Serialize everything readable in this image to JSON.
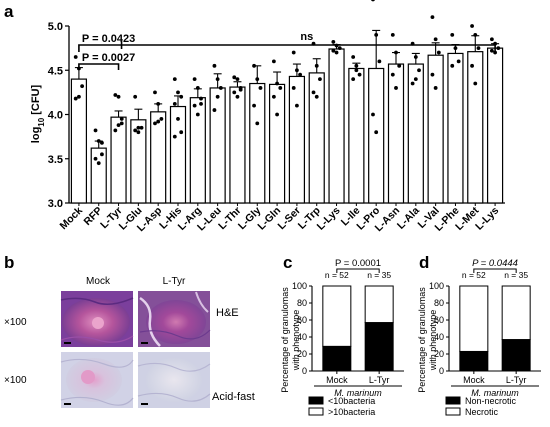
{
  "panels": {
    "a": "a",
    "b": "b",
    "c": "c",
    "d": "d"
  },
  "chart_data": [
    {
      "panel": "a",
      "type": "bar",
      "ylabel": "log10 [CFU]",
      "ylabel_base": "log",
      "ylabel_sub": "10",
      "ylabel_rest": " [CFU]",
      "ylim": [
        3.0,
        5.0
      ],
      "yticks": [
        "3.0",
        "3.5",
        "4.0",
        "4.5",
        "5.0"
      ],
      "categories": [
        "Mock",
        "RFP",
        "L-Tyr",
        "L-Glu",
        "L-Asp",
        "L-His",
        "L-Arg",
        "L-Leu",
        "L-Thr",
        "L-Gly",
        "L-Gln",
        "L-Ser",
        "L-Trp",
        "L-Lys",
        "L-Ile",
        "L-Pro",
        "L-Asn",
        "L-Ala",
        "L-Val",
        "L-Phe",
        "L-Met",
        "L-Lys"
      ],
      "values": [
        4.4,
        3.62,
        3.97,
        3.94,
        4.03,
        4.09,
        4.19,
        4.3,
        4.31,
        4.35,
        4.34,
        4.43,
        4.47,
        4.74,
        4.52,
        4.52,
        4.57,
        4.57,
        4.67,
        4.69,
        4.71,
        4.75
      ],
      "errors": [
        0.13,
        0.08,
        0.07,
        0.12,
        0.09,
        0.12,
        0.1,
        0.16,
        0.06,
        0.2,
        0.14,
        0.14,
        0.16,
        0.05,
        0.06,
        0.43,
        0.13,
        0.12,
        0.14,
        0.1,
        0.18,
        0.05
      ],
      "points": [
        [
          4.65,
          4.52,
          4.32,
          4.18,
          4.2
        ],
        [
          3.82,
          3.7,
          3.55,
          3.5,
          3.45,
          3.68
        ],
        [
          4.22,
          4.2,
          3.95,
          3.82,
          3.88,
          3.9
        ],
        [
          4.2,
          3.85,
          3.85,
          3.82,
          3.8
        ],
        [
          4.25,
          4.12,
          3.95,
          3.9,
          3.92
        ],
        [
          4.4,
          4.25,
          4.2,
          4.12,
          3.95,
          3.8,
          3.75
        ],
        [
          4.4,
          4.3,
          4.18,
          4.1,
          4.0,
          4.12
        ],
        [
          4.55,
          4.4,
          4.3,
          4.05,
          4.2
        ],
        [
          4.42,
          4.4,
          4.3,
          4.25,
          4.2,
          4.28
        ],
        [
          4.55,
          4.4,
          4.3,
          4.1,
          3.9
        ],
        [
          4.6,
          4.35,
          4.3,
          4.2,
          4.0
        ],
        [
          4.7,
          4.5,
          4.45,
          4.3,
          4.1
        ],
        [
          4.8,
          4.55,
          4.4,
          4.25,
          4.2
        ],
        [
          4.82,
          4.78,
          4.75,
          4.72,
          4.7
        ],
        [
          4.65,
          4.55,
          4.45,
          4.4,
          4.5
        ],
        [
          5.3,
          4.9,
          4.6,
          4.0,
          3.8
        ],
        [
          4.9,
          4.7,
          4.55,
          4.45,
          4.3
        ],
        [
          4.8,
          4.65,
          4.5,
          4.35,
          4.4
        ],
        [
          5.1,
          4.85,
          4.7,
          4.45,
          4.3
        ],
        [
          4.9,
          4.75,
          4.6,
          4.55
        ],
        [
          5.0,
          4.9,
          4.75,
          4.55,
          4.35
        ],
        [
          4.85,
          4.8,
          4.75,
          4.72,
          4.7
        ]
      ],
      "annotations": [
        {
          "text": "P = 0.0423",
          "from": 0,
          "to": 21,
          "right_label": "ns"
        },
        {
          "text": "P = 0.0027",
          "from": 0,
          "to": 2
        }
      ]
    },
    {
      "panel": "c",
      "type": "bar",
      "stacked": true,
      "ylabel": "Percentage of granulomas with phenotype",
      "ylabel_line1": "Percentage of granulomas",
      "ylabel_line2": "with phenotype",
      "ylim": [
        0,
        100
      ],
      "yticks": [
        "0",
        "20",
        "40",
        "60",
        "80",
        "100"
      ],
      "categories": [
        "Mock",
        "L-Tyr"
      ],
      "series": [
        {
          "name": "<10bacteria",
          "values": [
            29,
            57
          ],
          "color": "#000000"
        },
        {
          "name": ">10bacteria",
          "values": [
            71,
            43
          ],
          "color": "#ffffff"
        }
      ],
      "counts": [
        "n = 52",
        "n = 35"
      ],
      "pvalue": "P = 0.0001",
      "group_label": "M. marinum"
    },
    {
      "panel": "d",
      "type": "bar",
      "stacked": true,
      "ylabel": "Percentage of granulomas with phenotype",
      "ylabel_line1": "Percentage of granulomas",
      "ylabel_line2": "with phenotype",
      "ylim": [
        0,
        100
      ],
      "yticks": [
        "0",
        "20",
        "40",
        "60",
        "80",
        "100"
      ],
      "categories": [
        "Mock",
        "L-Tyr"
      ],
      "series": [
        {
          "name": "Non-necrotic",
          "values": [
            23,
            37
          ],
          "color": "#000000"
        },
        {
          "name": "Necrotic",
          "values": [
            77,
            63
          ],
          "color": "#ffffff"
        }
      ],
      "counts": [
        "n = 52",
        "n = 35"
      ],
      "pvalue": "P = 0.0444",
      "group_label": "M. marinum"
    }
  ],
  "histology": {
    "columns": [
      "Mock",
      "L-Tyr"
    ],
    "row_labels": [
      "H&E",
      "Acid-fast"
    ],
    "magnification": "×100",
    "colors": {
      "he_bg": "#7a3f9a",
      "he_focus": "#c46aa6",
      "af_bg": "#d4d4e6",
      "af_focus": "#d68fc0"
    }
  }
}
